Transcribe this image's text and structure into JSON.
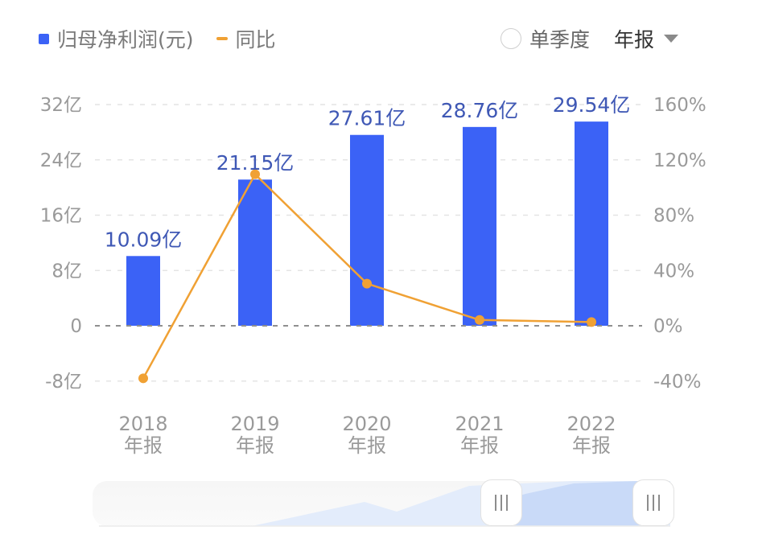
{
  "legend": {
    "bar_label": "归母净利润(元)",
    "line_label": "同比"
  },
  "controls": {
    "quarterly_label": "单季度",
    "quarterly_checked": false,
    "period_selected": "年报"
  },
  "colors": {
    "bar": "#3b62f6",
    "line": "#f0a134",
    "bar_label": "#3f58b5",
    "axis_text": "#9a9a9a",
    "slider_fill": "#c9daf8"
  },
  "axes": {
    "left_ticks": [
      "32亿",
      "24亿",
      "16亿",
      "8亿",
      "0",
      "-8亿"
    ],
    "right_ticks": [
      "160%",
      "120%",
      "80%",
      "40%",
      "0%",
      "-40%"
    ],
    "x_years": [
      "2018",
      "2019",
      "2020",
      "2021",
      "2022"
    ],
    "x_sub": [
      "年报",
      "年报",
      "年报",
      "年报",
      "年报"
    ]
  },
  "bar_labels": [
    "10.09亿",
    "21.15亿",
    "27.61亿",
    "28.76亿",
    "29.54亿"
  ],
  "chart_data": {
    "type": "bar",
    "title": "",
    "categories": [
      "2018年报",
      "2019年报",
      "2020年报",
      "2021年报",
      "2022年报"
    ],
    "series": [
      {
        "name": "归母净利润(元)",
        "type": "bar",
        "axis": "left",
        "unit": "亿",
        "values": [
          10.09,
          21.15,
          27.61,
          28.76,
          29.54
        ]
      },
      {
        "name": "同比",
        "type": "line",
        "axis": "right",
        "unit": "%",
        "values": [
          -38,
          109.6,
          30.5,
          4.2,
          2.7
        ]
      }
    ],
    "xlabel": "",
    "ylabel_left": "归母净利润(元)",
    "ylabel_right": "同比",
    "ylim_left": [
      -8,
      32
    ],
    "ylim_right": [
      -40,
      160
    ],
    "left_tick_labels": [
      "-8亿",
      "0",
      "8亿",
      "16亿",
      "24亿",
      "32亿"
    ],
    "right_tick_labels": [
      "-40%",
      "0%",
      "40%",
      "80%",
      "120%",
      "160%"
    ],
    "grid": true,
    "legend_position": "top-left"
  },
  "slider": {
    "handle_left_label": "|||",
    "handle_right_label": "|||"
  }
}
